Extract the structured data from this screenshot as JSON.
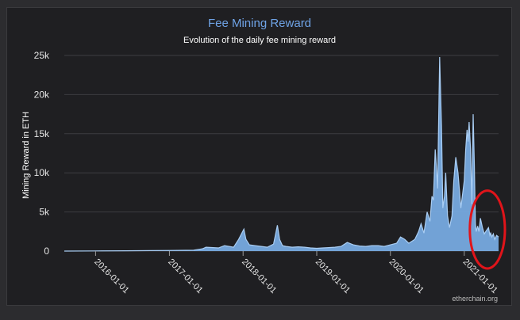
{
  "chart_data": {
    "type": "area",
    "title": "Fee Mining Reward",
    "subtitle": "Evolution of the daily fee mining reward",
    "ylabel": "Mining Reward in ETH",
    "xlabel": "",
    "credit": "etherchain.org",
    "ylim": [
      0,
      25000
    ],
    "yticks": [
      0,
      5000,
      10000,
      15000,
      20000,
      25000
    ],
    "ytick_labels": [
      "0",
      "5k",
      "10k",
      "15k",
      "20k",
      "25k"
    ],
    "xlim": [
      "2015-07-30",
      "2021-06-20"
    ],
    "xticks": [
      "2016-01-01",
      "2017-01-01",
      "2018-01-01",
      "2019-01-01",
      "2020-01-01",
      "2021-01-01"
    ],
    "grid": "horizontal",
    "colors": {
      "area": "#7aaee6",
      "line": "#a9cdf3",
      "title": "#6fa3e6",
      "annotation": "#e0141a"
    },
    "annotation": {
      "shape": "ellipse",
      "from": "2021-03-01",
      "to": "2021-06-20",
      "ylim": [
        0,
        5500
      ]
    },
    "series": [
      {
        "x": [
          "2015-07-30",
          "2016-01-01",
          "2016-06-01",
          "2016-10-01",
          "2017-01-01",
          "2017-05-01",
          "2017-06-15",
          "2017-07-01",
          "2017-09-01",
          "2017-10-01",
          "2017-11-15",
          "2017-12-10",
          "2018-01-05",
          "2018-01-15",
          "2018-02-01",
          "2018-03-01",
          "2018-04-01",
          "2018-05-01",
          "2018-06-01",
          "2018-06-20",
          "2018-07-01",
          "2018-07-15",
          "2018-08-01",
          "2018-09-01",
          "2018-10-01",
          "2018-11-01",
          "2018-12-01",
          "2019-01-01",
          "2019-02-01",
          "2019-03-01",
          "2019-04-01",
          "2019-05-01",
          "2019-06-01",
          "2019-07-01",
          "2019-08-01",
          "2019-09-01",
          "2019-10-01",
          "2019-11-01",
          "2019-12-01",
          "2020-01-01",
          "2020-02-01",
          "2020-02-20",
          "2020-03-12",
          "2020-04-01",
          "2020-05-01",
          "2020-05-20",
          "2020-06-01",
          "2020-06-15",
          "2020-07-01",
          "2020-07-15",
          "2020-07-25",
          "2020-08-01",
          "2020-08-10",
          "2020-08-15",
          "2020-08-22",
          "2020-09-01",
          "2020-09-10",
          "2020-09-17",
          "2020-09-25",
          "2020-10-01",
          "2020-10-10",
          "2020-10-20",
          "2020-11-01",
          "2020-11-10",
          "2020-11-20",
          "2020-12-01",
          "2020-12-15",
          "2021-01-01",
          "2021-01-08",
          "2021-01-15",
          "2021-01-20",
          "2021-01-25",
          "2021-02-01",
          "2021-02-08",
          "2021-02-14",
          "2021-02-20",
          "2021-02-25",
          "2021-03-01",
          "2021-03-08",
          "2021-03-15",
          "2021-03-22",
          "2021-04-01",
          "2021-04-10",
          "2021-04-20",
          "2021-05-01",
          "2021-05-08",
          "2021-05-12",
          "2021-05-18",
          "2021-05-25",
          "2021-06-01",
          "2021-06-10",
          "2021-06-20"
        ],
        "y": [
          0,
          20,
          40,
          60,
          80,
          120,
          300,
          500,
          400,
          700,
          500,
          1500,
          2800,
          1500,
          800,
          700,
          600,
          500,
          900,
          3300,
          1500,
          700,
          600,
          500,
          550,
          500,
          400,
          350,
          400,
          450,
          500,
          600,
          1100,
          800,
          650,
          600,
          700,
          700,
          600,
          800,
          1000,
          1800,
          1500,
          1000,
          1500,
          2500,
          3500,
          2300,
          5000,
          3800,
          7000,
          6500,
          13000,
          11000,
          8000,
          24800,
          16000,
          5500,
          7000,
          10000,
          4500,
          3000,
          4500,
          9000,
          12000,
          10000,
          5500,
          9000,
          13000,
          15500,
          14000,
          16500,
          13000,
          6000,
          17500,
          11000,
          3500,
          2500,
          3200,
          2500,
          4200,
          3000,
          2200,
          2600,
          3000,
          2000,
          2300,
          1800,
          2200,
          1500,
          2000,
          1800
        ]
      }
    ]
  }
}
